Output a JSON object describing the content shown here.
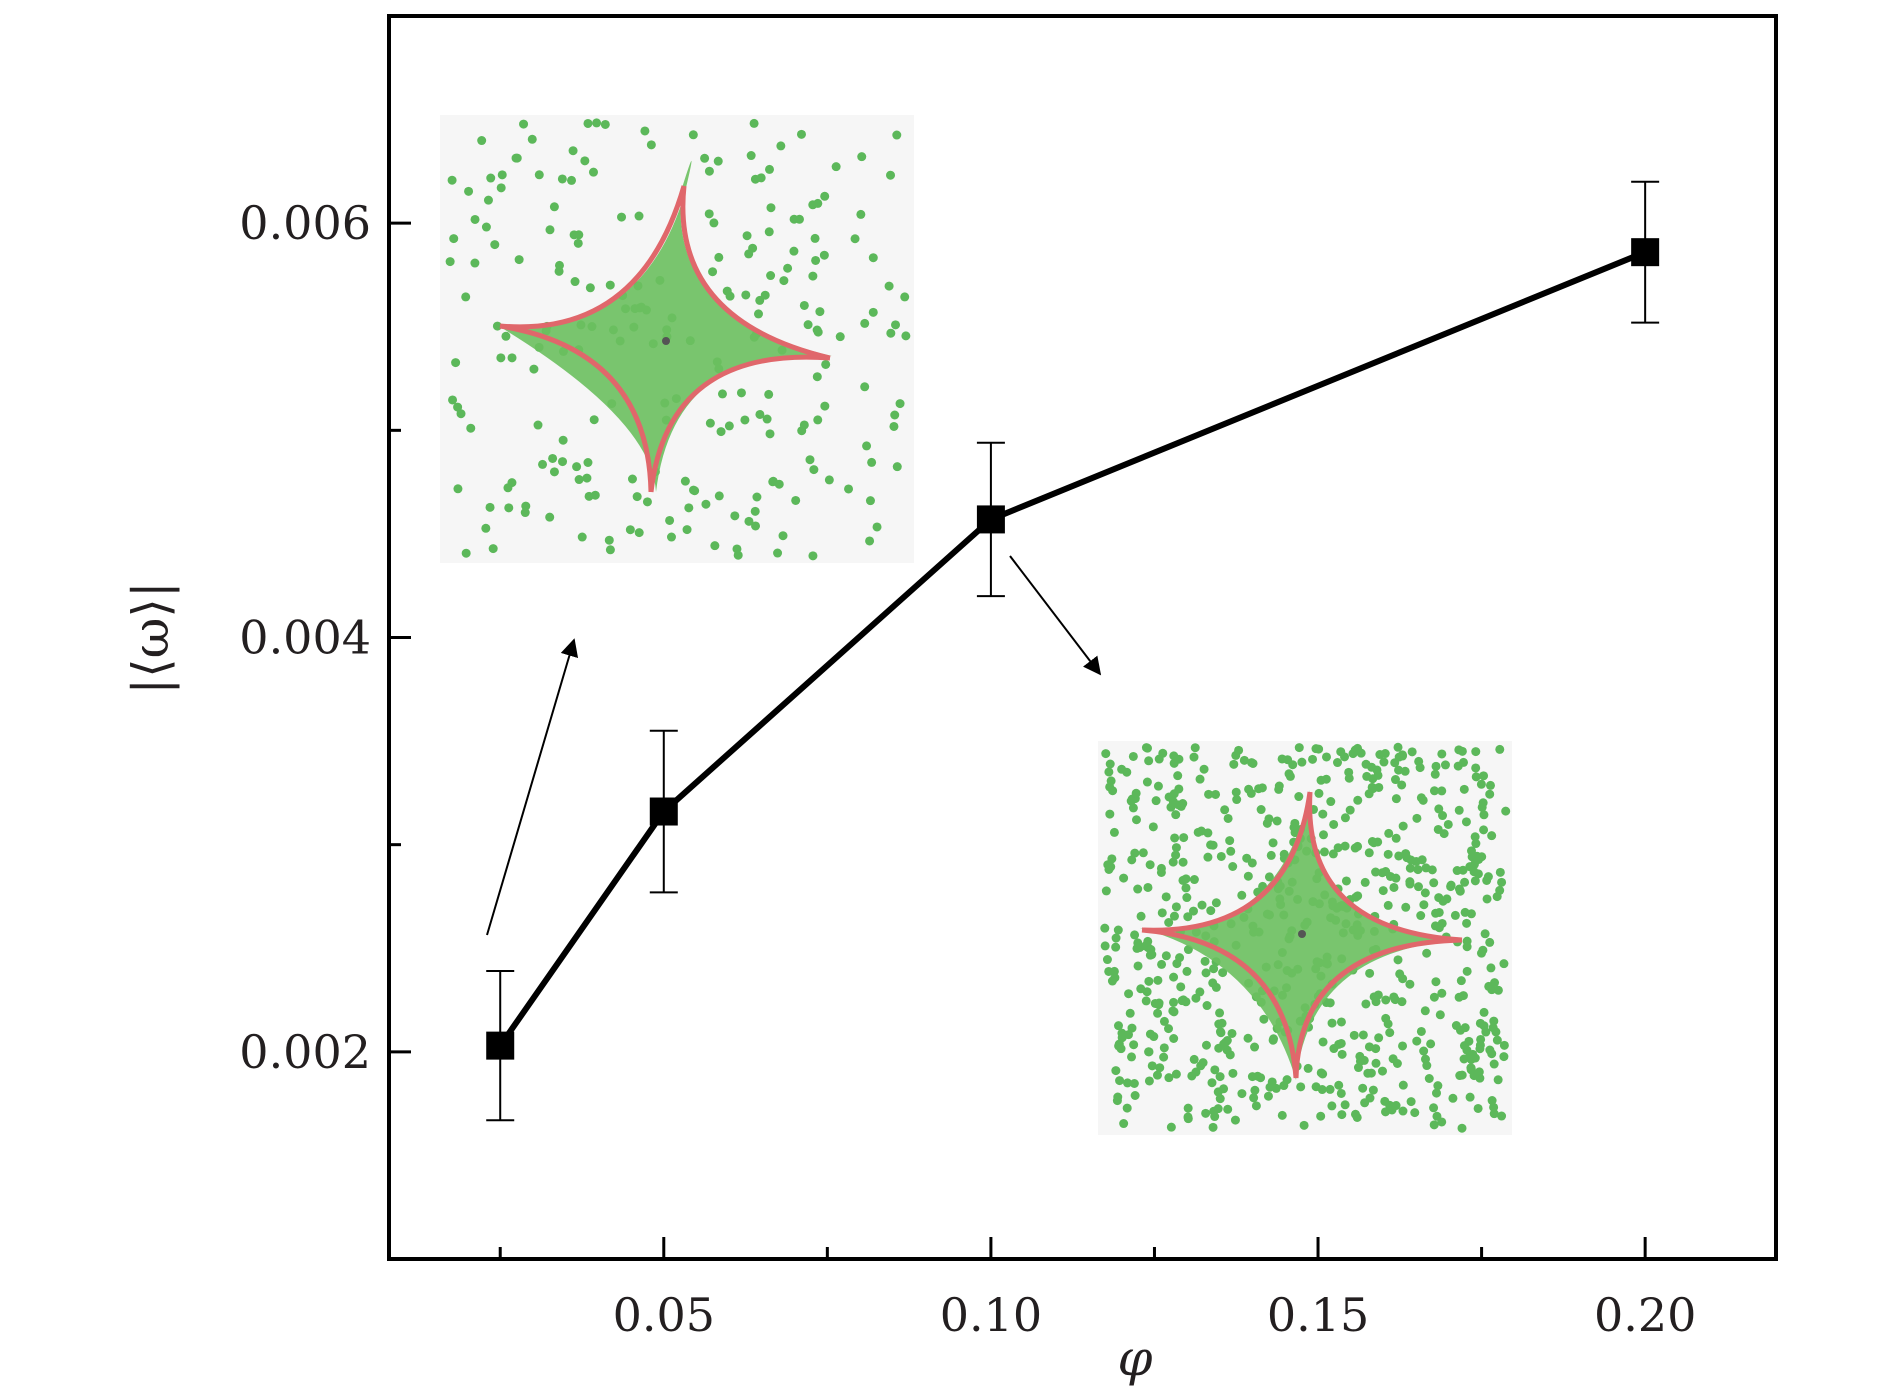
{
  "chart_data": {
    "type": "line",
    "xlabel": "φ",
    "ylabel": "|⟨ω⟩|",
    "xlim": [
      0.008,
      0.22
    ],
    "ylim": [
      0.001,
      0.007
    ],
    "x_ticks": [
      0.05,
      0.1,
      0.15,
      0.2
    ],
    "x_tick_labels": [
      "0.05",
      "0.10",
      "0.15",
      "0.20"
    ],
    "x_minor_ticks": [
      0.025,
      0.075,
      0.125,
      0.175
    ],
    "y_ticks": [
      0.002,
      0.004,
      0.006
    ],
    "y_tick_labels": [
      "0.002",
      "0.004",
      "0.006"
    ],
    "y_minor_ticks": [
      0.003,
      0.005
    ],
    "grid": false,
    "legend": "none",
    "series": [
      {
        "x": [
          0.025,
          0.05,
          0.1,
          0.2
        ],
        "y": [
          0.00203,
          0.00316,
          0.00457,
          0.00586
        ],
        "yerr": [
          0.00036,
          0.00039,
          0.00037,
          0.00034
        ],
        "marker": "square",
        "color": "#000000"
      }
    ],
    "insets": [
      {
        "name": "snapshot-low-phi",
        "points_to_x": 0.025,
        "particle_color": "#5cb85a",
        "curve_color": "#e0676b",
        "background": "#f6f6f6"
      },
      {
        "name": "snapshot-phi-0.10",
        "points_to_x": 0.1,
        "particle_color": "#5cb85a",
        "curve_color": "#e0676b",
        "background": "#f6f6f6"
      }
    ]
  }
}
